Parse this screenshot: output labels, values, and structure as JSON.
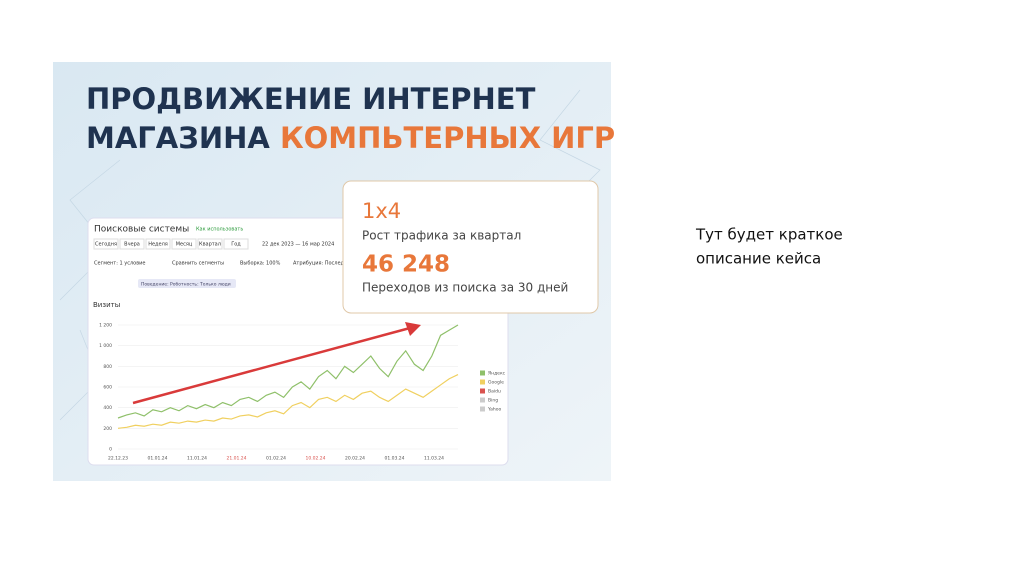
{
  "slide": {
    "title_line1": "ПРОДВИЖЕНИЕ ИНТЕРНЕТ",
    "title_line2_a": "МАГАЗИНА",
    "title_line2_b": "КОМПЬТЕРНЫХ ИГР",
    "stats": [
      {
        "value": "1x4",
        "label": "Рост трафика за квартал"
      },
      {
        "value": "46 248",
        "label": "Переходов из поиска за 30 дней"
      }
    ],
    "description": [
      "Тут будет краткое",
      "описание кейса"
    ]
  },
  "screenshot": {
    "title": "Поисковые системы",
    "help": "Как использовать",
    "periods": [
      "Сегодня",
      "Вчера",
      "Неделя",
      "Месяц",
      "Квартал",
      "Год"
    ],
    "date_range": "22 дек 2023 — 16 мар 2024",
    "filters": [
      "Сегмент: 1 условие",
      "Сравнить сегменты",
      "Выборка: 100%",
      "Атрибуция: Последн"
    ],
    "segment": "Поведение: Роботность: Только люди",
    "metric": "Визиты",
    "chart_data": {
      "type": "line",
      "yticks": [
        {
          "value": 0,
          "label": "0"
        },
        {
          "value": 200,
          "label": "200"
        },
        {
          "value": 400,
          "label": "400"
        },
        {
          "value": 600,
          "label": "600"
        },
        {
          "value": 800,
          "label": "800"
        },
        {
          "value": 1000,
          "label": "1 000"
        },
        {
          "value": 1200,
          "label": "1 200"
        }
      ],
      "ylim": [
        0,
        1200
      ],
      "xtick_labels": [
        "22.12.23",
        "01.01.24",
        "11.01.24",
        "21.01.24",
        "01.02.24",
        "10.02.24",
        "20.02.24",
        "01.03.24",
        "11.03.24"
      ],
      "series": [
        {
          "name": "Яндекс",
          "color": "#8fc06a",
          "values": [
            300,
            330,
            350,
            320,
            380,
            360,
            400,
            370,
            420,
            390,
            430,
            400,
            450,
            420,
            480,
            500,
            460,
            520,
            550,
            500,
            600,
            650,
            580,
            700,
            760,
            680,
            800,
            740,
            820,
            900,
            780,
            700,
            850,
            950,
            820,
            760,
            900,
            1100,
            1150,
            1200
          ]
        },
        {
          "name": "Google",
          "color": "#f0d060",
          "values": [
            200,
            210,
            230,
            220,
            240,
            230,
            260,
            250,
            270,
            260,
            280,
            270,
            300,
            290,
            320,
            330,
            310,
            350,
            370,
            340,
            420,
            450,
            400,
            480,
            500,
            460,
            520,
            480,
            540,
            560,
            500,
            460,
            520,
            580,
            540,
            500,
            560,
            620,
            680,
            720
          ]
        },
        {
          "name": "Baidu",
          "color": "#d9534f"
        },
        {
          "name": "Bing",
          "color": "#cccccc"
        },
        {
          "name": "Yahoo",
          "color": "#cccccc"
        }
      ]
    }
  }
}
